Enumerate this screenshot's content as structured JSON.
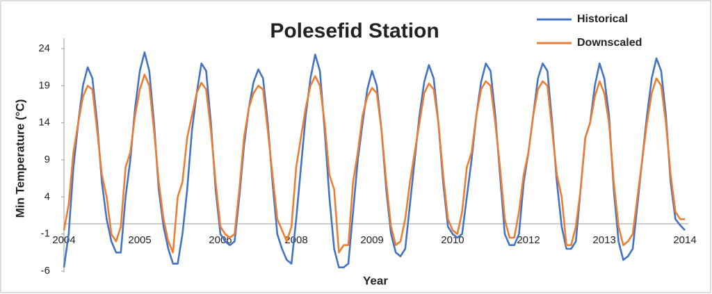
{
  "chart_data": {
    "type": "line",
    "title": "Polesefid Station",
    "x_label": "Year",
    "y_label": "Min  Temperature (°C)",
    "categories": [
      "2004",
      null,
      null,
      null,
      null,
      null,
      null,
      null,
      null,
      null,
      null,
      null,
      null,
      null,
      null,
      null,
      "2005",
      null,
      null,
      null,
      null,
      null,
      null,
      null,
      null,
      null,
      null,
      null,
      null,
      null,
      null,
      null,
      null,
      "2006",
      null,
      null,
      null,
      null,
      null,
      null,
      null,
      null,
      null,
      null,
      null,
      null,
      null,
      null,
      null,
      "2008",
      null,
      null,
      null,
      null,
      null,
      null,
      null,
      null,
      null,
      null,
      null,
      null,
      null,
      null,
      null,
      "2009",
      null,
      null,
      null,
      null,
      null,
      null,
      null,
      null,
      null,
      null,
      null,
      null,
      null,
      null,
      null,
      null,
      "2010",
      null,
      null,
      null,
      null,
      null,
      null,
      null,
      null,
      null,
      null,
      null,
      null,
      null,
      null,
      null,
      "2012",
      null,
      null,
      null,
      null,
      null,
      null,
      null,
      null,
      null,
      null,
      null,
      null,
      null,
      null,
      null,
      "2013",
      null,
      null,
      null,
      null,
      null,
      null,
      null,
      null,
      null,
      null,
      null,
      null,
      null,
      null,
      null,
      null,
      "2014"
    ],
    "series": [
      {
        "name": "Historical",
        "color": "#4472c4",
        "values": [
          -5.5,
          -1,
          8,
          14,
          19,
          21.5,
          20,
          14,
          6,
          1,
          -2,
          -3.5,
          -3.5,
          4,
          9,
          16,
          21,
          23.5,
          21,
          14,
          5,
          0,
          -3,
          -5,
          -5,
          -1,
          5,
          13,
          18,
          22,
          21,
          14,
          5,
          -1,
          -2,
          -2.5,
          -2,
          4,
          11,
          16,
          19.5,
          21.2,
          20,
          14,
          6,
          -1,
          -3,
          -4.5,
          -5,
          1,
          8,
          15,
          20,
          23.2,
          21,
          13,
          4,
          -3,
          -5.5,
          -5.5,
          -5,
          2,
          9,
          14,
          18.5,
          21,
          19,
          13,
          5,
          -1,
          -3.5,
          -4,
          -3,
          3,
          9,
          15,
          19.5,
          21.8,
          20,
          14,
          6,
          0,
          -1,
          -1.5,
          -1,
          4,
          9,
          15,
          19.5,
          22,
          21,
          15,
          7,
          -1,
          -2.5,
          -2.5,
          -1,
          6,
          10,
          15,
          20,
          22,
          21,
          14,
          6,
          0,
          -3,
          -3,
          -2,
          5,
          12,
          14,
          19,
          22,
          20,
          15,
          5,
          -2,
          -4.5,
          -4,
          -3,
          3,
          9,
          15,
          20,
          22.7,
          21,
          15,
          6,
          1,
          0.2,
          -0.5
        ]
      },
      {
        "name": "Downscaled",
        "color": "#ed7d31",
        "values": [
          -0.5,
          3,
          10,
          14,
          17.5,
          19,
          18.5,
          13,
          7,
          4,
          -1,
          -2,
          0,
          8,
          10,
          15,
          18.5,
          20.5,
          19,
          13,
          6,
          1,
          -2,
          -3.5,
          4,
          6,
          12,
          15,
          18,
          19.4,
          18.5,
          13,
          6,
          0,
          -1,
          -1.5,
          -1,
          5,
          12,
          16,
          18,
          19,
          18.5,
          13,
          7,
          1,
          -0.5,
          -2,
          0,
          8,
          12,
          16,
          19,
          20.3,
          19,
          14,
          7,
          5,
          -3.5,
          -2.5,
          -2.5,
          6,
          10,
          15,
          17.5,
          18.7,
          18,
          13,
          6,
          0,
          -2.5,
          -2,
          1,
          6,
          10,
          14,
          18,
          19.3,
          18.5,
          14,
          7,
          1,
          -0.5,
          -1,
          2,
          8,
          10,
          15,
          18.5,
          19.6,
          19,
          14,
          8,
          1,
          -1.5,
          -1.5,
          2,
          7,
          10,
          15,
          18.5,
          19.6,
          19,
          13,
          7,
          4,
          -2.5,
          -2.5,
          0,
          5,
          12,
          14,
          17.5,
          19.6,
          18,
          14,
          6,
          0,
          -2.5,
          -2,
          -1,
          4,
          9,
          14,
          18,
          20,
          19,
          14,
          7,
          2,
          1,
          1
        ]
      }
    ],
    "ylim": [
      -6,
      24
    ],
    "yticks": [
      -6,
      -1,
      4,
      9,
      14,
      19,
      24
    ],
    "legend": "top-right"
  }
}
